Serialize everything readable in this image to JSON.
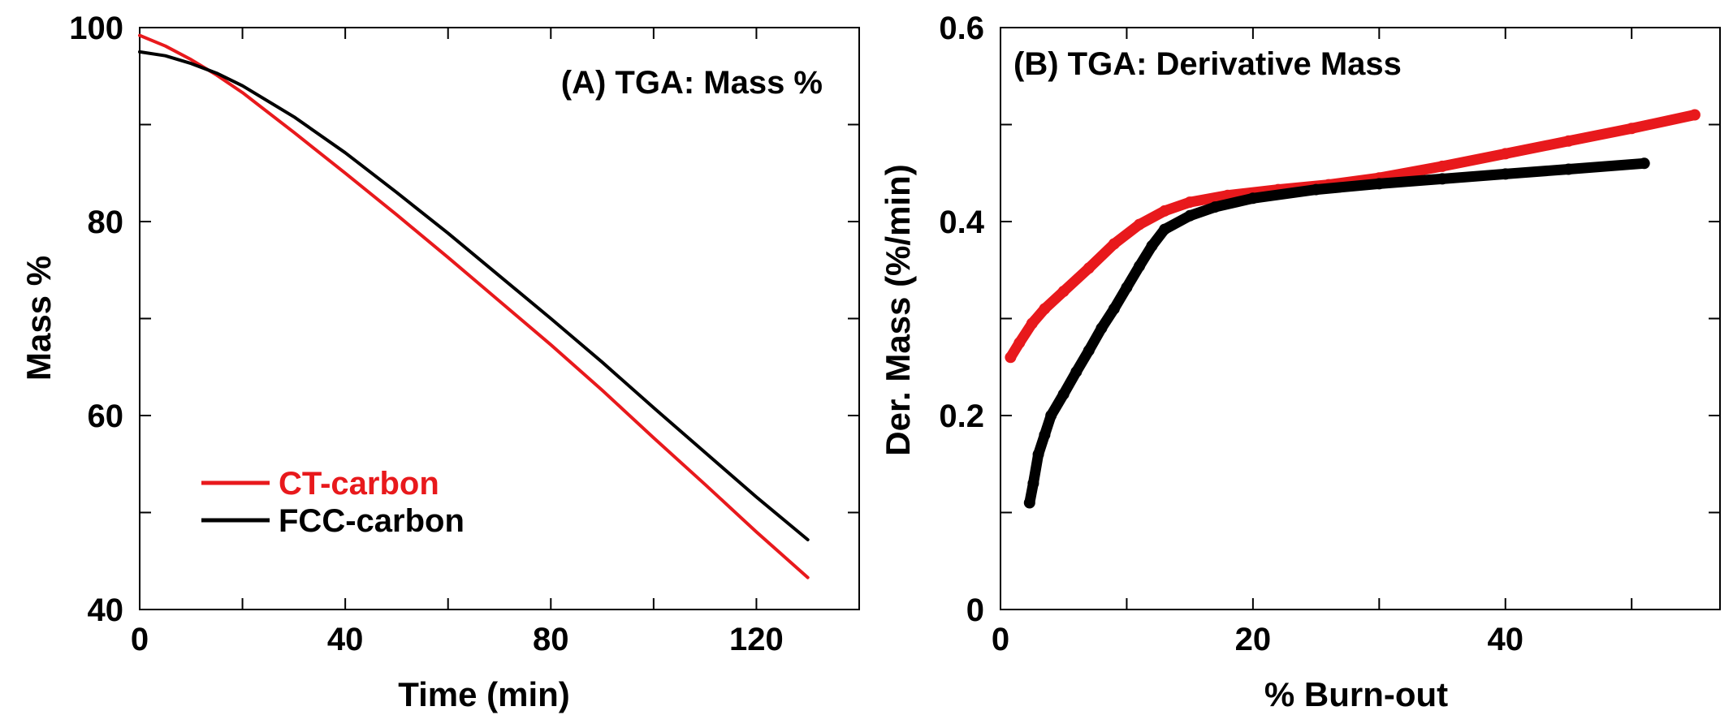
{
  "chart_data": [
    {
      "type": "line",
      "title": "(A) TGA: Mass %",
      "xlabel": "Time (min)",
      "ylabel": "Mass %",
      "xlim": [
        0,
        140
      ],
      "ylim": [
        40,
        100
      ],
      "x_ticks": [
        0,
        40,
        80,
        120
      ],
      "x_tick_labels": [
        "0",
        "40",
        "80",
        "120"
      ],
      "x_minor_ticks": [
        20,
        60,
        100,
        140
      ],
      "y_ticks": [
        40,
        60,
        80,
        100
      ],
      "y_tick_labels": [
        "40",
        "60",
        "80",
        "100"
      ],
      "y_minor_ticks": [
        50,
        70,
        90
      ],
      "legend_position": "bottom-left",
      "series": [
        {
          "name": "CT-carbon",
          "color": "#e8191c",
          "x": [
            0,
            5,
            10,
            15,
            20,
            30,
            40,
            50,
            60,
            70,
            80,
            90,
            100,
            110,
            120,
            130
          ],
          "y": [
            99.2,
            98.1,
            96.7,
            95.1,
            93.3,
            89.2,
            85.0,
            80.7,
            76.3,
            71.8,
            67.3,
            62.6,
            57.7,
            52.9,
            48.0,
            43.3
          ]
        },
        {
          "name": "FCC-carbon",
          "color": "#000000",
          "x": [
            0,
            5,
            10,
            15,
            20,
            30,
            40,
            50,
            60,
            70,
            80,
            90,
            100,
            110,
            120,
            130
          ],
          "y": [
            97.5,
            97.1,
            96.3,
            95.3,
            94.0,
            90.8,
            87.1,
            83.0,
            78.8,
            74.4,
            70.0,
            65.5,
            60.8,
            56.2,
            51.6,
            47.2
          ]
        }
      ]
    },
    {
      "type": "scatter",
      "title": "(B) TGA: Derivative Mass",
      "xlabel": "% Burn-out",
      "ylabel": "Der. Mass (%/min)",
      "xlim": [
        0,
        57
      ],
      "ylim": [
        0,
        0.6
      ],
      "x_ticks": [
        0,
        20,
        40
      ],
      "x_tick_labels": [
        "0",
        "20",
        "40"
      ],
      "x_minor_ticks": [
        10,
        30,
        50
      ],
      "y_ticks": [
        0,
        0.2,
        0.4,
        0.6
      ],
      "y_tick_labels": [
        "0",
        "0.2",
        "0.4",
        "0.6"
      ],
      "y_minor_ticks": [
        0.1,
        0.3,
        0.5
      ],
      "series": [
        {
          "name": "CT-carbon",
          "color": "#e8191c",
          "x": [
            0.8,
            1.5,
            2.5,
            3.5,
            5,
            7,
            9,
            11,
            13,
            15,
            18,
            22,
            26,
            30,
            35,
            40,
            45,
            50,
            55
          ],
          "y": [
            0.26,
            0.275,
            0.295,
            0.31,
            0.328,
            0.352,
            0.377,
            0.397,
            0.411,
            0.42,
            0.427,
            0.433,
            0.438,
            0.445,
            0.457,
            0.47,
            0.483,
            0.496,
            0.51
          ]
        },
        {
          "name": "FCC-carbon",
          "color": "#000000",
          "x": [
            2.3,
            2.6,
            3.0,
            3.5,
            4,
            5,
            6,
            7,
            8,
            9,
            10,
            11,
            12,
            13,
            15,
            17,
            20,
            25,
            30,
            35,
            40,
            45,
            51
          ],
          "y": [
            0.11,
            0.13,
            0.16,
            0.18,
            0.2,
            0.222,
            0.245,
            0.267,
            0.29,
            0.31,
            0.332,
            0.354,
            0.375,
            0.392,
            0.406,
            0.415,
            0.424,
            0.433,
            0.439,
            0.444,
            0.449,
            0.454,
            0.46
          ]
        }
      ]
    }
  ]
}
